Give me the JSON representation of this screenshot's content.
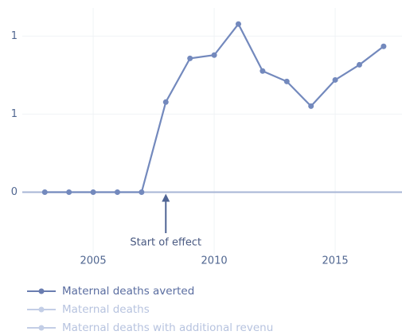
{
  "chart_data": {
    "type": "line",
    "x": [
      2003,
      2004,
      2005,
      2006,
      2007,
      2008,
      2009,
      2010,
      2011,
      2012,
      2013,
      2014,
      2015,
      2016,
      2017
    ],
    "series": [
      {
        "name": "Maternal deaths averted",
        "color": "#7389bd",
        "visible": true,
        "values": [
          0,
          0,
          0,
          0,
          0,
          0.577,
          0.857,
          0.878,
          1.077,
          0.776,
          0.709,
          0.551,
          0.719,
          0.816,
          0.934
        ]
      },
      {
        "name": "Maternal deaths",
        "color": "#c3cee6",
        "visible": false
      },
      {
        "name": "Maternal deaths with additional revenu",
        "color": "#c3cee6",
        "visible": false
      }
    ],
    "xlim": [
      2002.07,
      2017.76
    ],
    "xticks": [
      2005,
      2010,
      2015
    ],
    "ylim": [
      -0.4,
      1.18
    ],
    "yticks": [
      0,
      {
        "value": 0.5,
        "label": "1"
      },
      1
    ],
    "grid": true,
    "annotations": [
      {
        "text": "Start of effect",
        "x": 2008,
        "y": 0
      }
    ]
  }
}
